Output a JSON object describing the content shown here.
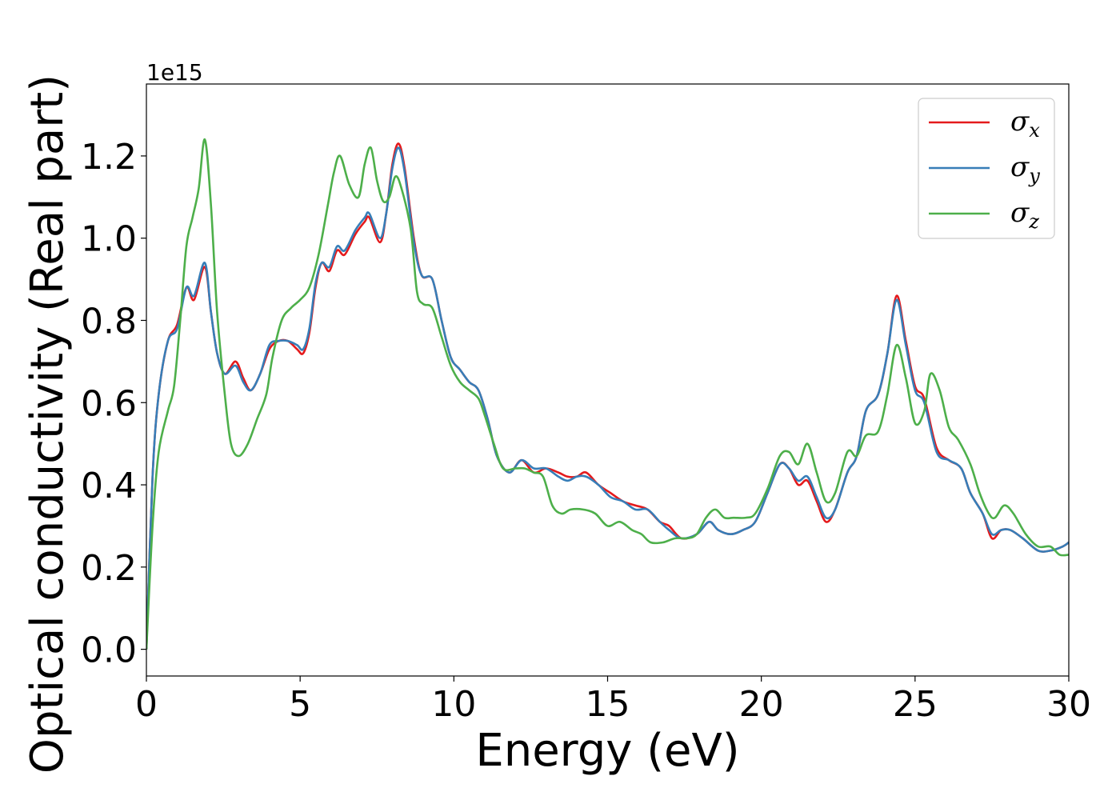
{
  "chart_data": {
    "type": "line",
    "title": "",
    "xlabel": "Energy (eV)",
    "ylabel": "Optical conductivity (Real part)",
    "y_offset_label": "1e15",
    "xlim": [
      0,
      30
    ],
    "ylim": [
      -0.065,
      1.375
    ],
    "xticks": [
      0,
      5,
      10,
      15,
      20,
      25,
      30
    ],
    "xtick_labels": [
      "0",
      "5",
      "10",
      "15",
      "20",
      "25",
      "30"
    ],
    "yticks": [
      0.0,
      0.2,
      0.4,
      0.6,
      0.8,
      1.0,
      1.2
    ],
    "ytick_labels": [
      "0.0",
      "0.2",
      "0.4",
      "0.6",
      "0.8",
      "1.0",
      "1.2"
    ],
    "grid": false,
    "legend_position": "top-right",
    "series": [
      {
        "name": "σx",
        "legend_base": "σ",
        "legend_sub": "x",
        "color": "#e41a1c",
        "points": [
          [
            0,
            0.0
          ],
          [
            0.2,
            0.42
          ],
          [
            0.4,
            0.62
          ],
          [
            0.7,
            0.75
          ],
          [
            1.0,
            0.79
          ],
          [
            1.3,
            0.88
          ],
          [
            1.55,
            0.85
          ],
          [
            1.9,
            0.93
          ],
          [
            2.1,
            0.82
          ],
          [
            2.3,
            0.72
          ],
          [
            2.55,
            0.67
          ],
          [
            2.9,
            0.7
          ],
          [
            3.15,
            0.66
          ],
          [
            3.4,
            0.63
          ],
          [
            3.7,
            0.67
          ],
          [
            4.0,
            0.73
          ],
          [
            4.3,
            0.75
          ],
          [
            4.6,
            0.75
          ],
          [
            4.9,
            0.73
          ],
          [
            5.1,
            0.72
          ],
          [
            5.3,
            0.77
          ],
          [
            5.5,
            0.88
          ],
          [
            5.7,
            0.94
          ],
          [
            5.95,
            0.92
          ],
          [
            6.2,
            0.97
          ],
          [
            6.45,
            0.96
          ],
          [
            6.8,
            1.01
          ],
          [
            7.1,
            1.04
          ],
          [
            7.25,
            1.05
          ],
          [
            7.6,
            0.99
          ],
          [
            7.8,
            1.06
          ],
          [
            8.0,
            1.18
          ],
          [
            8.2,
            1.23
          ],
          [
            8.4,
            1.17
          ],
          [
            8.7,
            1.0
          ],
          [
            8.95,
            0.91
          ],
          [
            9.3,
            0.9
          ],
          [
            9.6,
            0.8
          ],
          [
            9.9,
            0.71
          ],
          [
            10.2,
            0.68
          ],
          [
            10.5,
            0.65
          ],
          [
            10.8,
            0.63
          ],
          [
            11.1,
            0.56
          ],
          [
            11.4,
            0.47
          ],
          [
            11.8,
            0.43
          ],
          [
            12.2,
            0.46
          ],
          [
            12.6,
            0.43
          ],
          [
            13.0,
            0.44
          ],
          [
            13.4,
            0.43
          ],
          [
            13.7,
            0.42
          ],
          [
            14.0,
            0.42
          ],
          [
            14.3,
            0.43
          ],
          [
            14.7,
            0.4
          ],
          [
            15.1,
            0.38
          ],
          [
            15.5,
            0.36
          ],
          [
            15.9,
            0.35
          ],
          [
            16.3,
            0.34
          ],
          [
            16.7,
            0.31
          ],
          [
            17.0,
            0.3
          ],
          [
            17.4,
            0.27
          ],
          [
            17.9,
            0.28
          ],
          [
            18.3,
            0.31
          ],
          [
            18.6,
            0.29
          ],
          [
            19.0,
            0.28
          ],
          [
            19.4,
            0.29
          ],
          [
            19.8,
            0.31
          ],
          [
            20.2,
            0.38
          ],
          [
            20.6,
            0.45
          ],
          [
            20.9,
            0.44
          ],
          [
            21.2,
            0.4
          ],
          [
            21.5,
            0.41
          ],
          [
            21.8,
            0.36
          ],
          [
            22.1,
            0.31
          ],
          [
            22.4,
            0.34
          ],
          [
            22.8,
            0.43
          ],
          [
            23.1,
            0.47
          ],
          [
            23.4,
            0.58
          ],
          [
            23.8,
            0.62
          ],
          [
            24.1,
            0.72
          ],
          [
            24.4,
            0.86
          ],
          [
            24.7,
            0.75
          ],
          [
            25.0,
            0.64
          ],
          [
            25.3,
            0.61
          ],
          [
            25.7,
            0.49
          ],
          [
            26.1,
            0.46
          ],
          [
            26.5,
            0.44
          ],
          [
            26.8,
            0.38
          ],
          [
            27.2,
            0.33
          ],
          [
            27.5,
            0.27
          ],
          [
            27.8,
            0.29
          ],
          [
            28.1,
            0.29
          ],
          [
            28.5,
            0.27
          ],
          [
            29.0,
            0.24
          ],
          [
            29.4,
            0.24
          ],
          [
            29.8,
            0.25
          ],
          [
            30.0,
            0.26
          ]
        ]
      },
      {
        "name": "σy",
        "legend_base": "σ",
        "legend_sub": "y",
        "color": "#377eb8",
        "points": [
          [
            0,
            0.0
          ],
          [
            0.2,
            0.42
          ],
          [
            0.4,
            0.62
          ],
          [
            0.7,
            0.75
          ],
          [
            1.0,
            0.78
          ],
          [
            1.3,
            0.88
          ],
          [
            1.55,
            0.86
          ],
          [
            1.9,
            0.94
          ],
          [
            2.1,
            0.82
          ],
          [
            2.3,
            0.72
          ],
          [
            2.55,
            0.67
          ],
          [
            2.9,
            0.69
          ],
          [
            3.15,
            0.65
          ],
          [
            3.4,
            0.63
          ],
          [
            3.7,
            0.67
          ],
          [
            4.0,
            0.74
          ],
          [
            4.3,
            0.75
          ],
          [
            4.6,
            0.75
          ],
          [
            4.9,
            0.74
          ],
          [
            5.1,
            0.73
          ],
          [
            5.3,
            0.78
          ],
          [
            5.5,
            0.89
          ],
          [
            5.7,
            0.94
          ],
          [
            5.95,
            0.93
          ],
          [
            6.2,
            0.98
          ],
          [
            6.45,
            0.97
          ],
          [
            6.8,
            1.02
          ],
          [
            7.1,
            1.05
          ],
          [
            7.25,
            1.06
          ],
          [
            7.6,
            1.0
          ],
          [
            7.8,
            1.06
          ],
          [
            8.0,
            1.17
          ],
          [
            8.2,
            1.22
          ],
          [
            8.4,
            1.16
          ],
          [
            8.7,
            0.99
          ],
          [
            8.95,
            0.91
          ],
          [
            9.3,
            0.9
          ],
          [
            9.6,
            0.8
          ],
          [
            9.9,
            0.71
          ],
          [
            10.2,
            0.68
          ],
          [
            10.5,
            0.65
          ],
          [
            10.8,
            0.63
          ],
          [
            11.1,
            0.56
          ],
          [
            11.4,
            0.47
          ],
          [
            11.8,
            0.43
          ],
          [
            12.2,
            0.46
          ],
          [
            12.6,
            0.44
          ],
          [
            13.0,
            0.44
          ],
          [
            13.4,
            0.42
          ],
          [
            13.7,
            0.41
          ],
          [
            14.0,
            0.42
          ],
          [
            14.3,
            0.42
          ],
          [
            14.7,
            0.4
          ],
          [
            15.1,
            0.37
          ],
          [
            15.5,
            0.36
          ],
          [
            15.9,
            0.34
          ],
          [
            16.3,
            0.34
          ],
          [
            16.7,
            0.31
          ],
          [
            17.0,
            0.29
          ],
          [
            17.4,
            0.27
          ],
          [
            17.9,
            0.28
          ],
          [
            18.3,
            0.31
          ],
          [
            18.6,
            0.29
          ],
          [
            19.0,
            0.28
          ],
          [
            19.4,
            0.29
          ],
          [
            19.8,
            0.31
          ],
          [
            20.2,
            0.38
          ],
          [
            20.6,
            0.45
          ],
          [
            20.9,
            0.44
          ],
          [
            21.2,
            0.41
          ],
          [
            21.5,
            0.42
          ],
          [
            21.8,
            0.37
          ],
          [
            22.1,
            0.32
          ],
          [
            22.4,
            0.34
          ],
          [
            22.8,
            0.43
          ],
          [
            23.1,
            0.47
          ],
          [
            23.4,
            0.58
          ],
          [
            23.8,
            0.62
          ],
          [
            24.1,
            0.72
          ],
          [
            24.4,
            0.85
          ],
          [
            24.7,
            0.74
          ],
          [
            25.0,
            0.63
          ],
          [
            25.3,
            0.6
          ],
          [
            25.7,
            0.48
          ],
          [
            26.1,
            0.46
          ],
          [
            26.5,
            0.44
          ],
          [
            26.8,
            0.38
          ],
          [
            27.2,
            0.33
          ],
          [
            27.5,
            0.28
          ],
          [
            27.8,
            0.29
          ],
          [
            28.1,
            0.29
          ],
          [
            28.5,
            0.27
          ],
          [
            29.0,
            0.24
          ],
          [
            29.4,
            0.24
          ],
          [
            29.8,
            0.25
          ],
          [
            30.0,
            0.26
          ]
        ]
      },
      {
        "name": "σz",
        "legend_base": "σ",
        "legend_sub": "z",
        "color": "#4daf4a",
        "points": [
          [
            0,
            0.0
          ],
          [
            0.2,
            0.3
          ],
          [
            0.4,
            0.48
          ],
          [
            0.7,
            0.58
          ],
          [
            0.9,
            0.64
          ],
          [
            1.1,
            0.8
          ],
          [
            1.3,
            0.98
          ],
          [
            1.5,
            1.05
          ],
          [
            1.7,
            1.12
          ],
          [
            1.9,
            1.24
          ],
          [
            2.1,
            1.08
          ],
          [
            2.3,
            0.82
          ],
          [
            2.55,
            0.62
          ],
          [
            2.75,
            0.5
          ],
          [
            3.0,
            0.47
          ],
          [
            3.3,
            0.5
          ],
          [
            3.6,
            0.56
          ],
          [
            3.9,
            0.62
          ],
          [
            4.1,
            0.71
          ],
          [
            4.4,
            0.8
          ],
          [
            4.7,
            0.83
          ],
          [
            5.0,
            0.85
          ],
          [
            5.3,
            0.88
          ],
          [
            5.6,
            0.96
          ],
          [
            5.9,
            1.08
          ],
          [
            6.1,
            1.16
          ],
          [
            6.3,
            1.2
          ],
          [
            6.6,
            1.13
          ],
          [
            6.9,
            1.1
          ],
          [
            7.1,
            1.18
          ],
          [
            7.3,
            1.22
          ],
          [
            7.5,
            1.14
          ],
          [
            7.7,
            1.09
          ],
          [
            7.9,
            1.1
          ],
          [
            8.1,
            1.15
          ],
          [
            8.3,
            1.12
          ],
          [
            8.6,
            1.02
          ],
          [
            8.8,
            0.87
          ],
          [
            9.0,
            0.84
          ],
          [
            9.3,
            0.83
          ],
          [
            9.6,
            0.76
          ],
          [
            9.9,
            0.69
          ],
          [
            10.2,
            0.65
          ],
          [
            10.5,
            0.63
          ],
          [
            10.8,
            0.61
          ],
          [
            11.0,
            0.57
          ],
          [
            11.3,
            0.5
          ],
          [
            11.6,
            0.44
          ],
          [
            12.0,
            0.44
          ],
          [
            12.3,
            0.44
          ],
          [
            12.6,
            0.43
          ],
          [
            12.9,
            0.42
          ],
          [
            13.2,
            0.35
          ],
          [
            13.5,
            0.33
          ],
          [
            13.8,
            0.34
          ],
          [
            14.2,
            0.34
          ],
          [
            14.6,
            0.33
          ],
          [
            15.0,
            0.3
          ],
          [
            15.4,
            0.31
          ],
          [
            15.8,
            0.29
          ],
          [
            16.1,
            0.28
          ],
          [
            16.4,
            0.26
          ],
          [
            16.8,
            0.26
          ],
          [
            17.2,
            0.27
          ],
          [
            17.6,
            0.27
          ],
          [
            17.9,
            0.28
          ],
          [
            18.2,
            0.32
          ],
          [
            18.5,
            0.34
          ],
          [
            18.8,
            0.32
          ],
          [
            19.1,
            0.32
          ],
          [
            19.5,
            0.32
          ],
          [
            19.8,
            0.33
          ],
          [
            20.2,
            0.39
          ],
          [
            20.6,
            0.47
          ],
          [
            20.9,
            0.48
          ],
          [
            21.2,
            0.45
          ],
          [
            21.5,
            0.5
          ],
          [
            21.8,
            0.43
          ],
          [
            22.1,
            0.36
          ],
          [
            22.4,
            0.38
          ],
          [
            22.8,
            0.48
          ],
          [
            23.1,
            0.47
          ],
          [
            23.4,
            0.52
          ],
          [
            23.8,
            0.53
          ],
          [
            24.1,
            0.62
          ],
          [
            24.4,
            0.74
          ],
          [
            24.7,
            0.66
          ],
          [
            25.0,
            0.55
          ],
          [
            25.3,
            0.58
          ],
          [
            25.5,
            0.67
          ],
          [
            25.8,
            0.63
          ],
          [
            26.1,
            0.54
          ],
          [
            26.4,
            0.51
          ],
          [
            26.8,
            0.45
          ],
          [
            27.1,
            0.38
          ],
          [
            27.4,
            0.33
          ],
          [
            27.6,
            0.32
          ],
          [
            27.9,
            0.35
          ],
          [
            28.2,
            0.33
          ],
          [
            28.6,
            0.28
          ],
          [
            29.0,
            0.25
          ],
          [
            29.4,
            0.25
          ],
          [
            29.7,
            0.23
          ],
          [
            30.0,
            0.23
          ]
        ]
      }
    ]
  }
}
